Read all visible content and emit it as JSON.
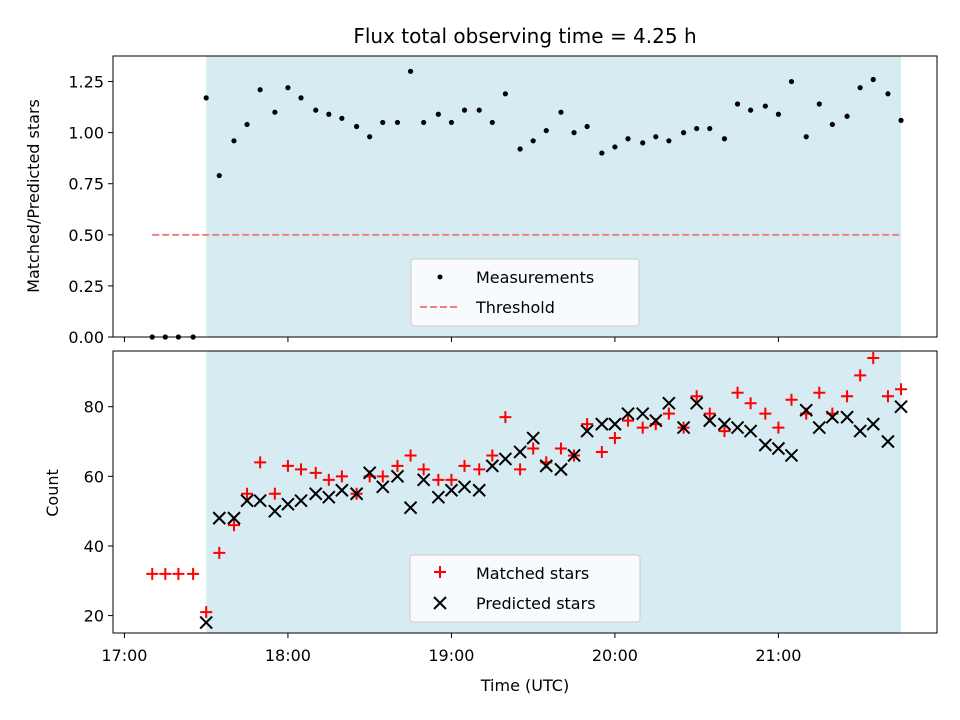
{
  "chart_data": [
    {
      "type": "scatter",
      "title": "Flux total observing time = 4.25 h",
      "xlabel": "",
      "ylabel": "Matched/Predicted stars",
      "xlim": [
        16.93,
        21.97
      ],
      "ylim": [
        0.0,
        1.375
      ],
      "yticks": [
        0.0,
        0.25,
        0.5,
        0.75,
        1.0,
        1.25
      ],
      "ytick_labels": [
        "0.00",
        "0.25",
        "0.50",
        "0.75",
        "1.00",
        "1.25"
      ],
      "xticks": [
        17,
        18,
        19,
        20,
        21
      ],
      "observing_span": [
        17.5,
        21.75
      ],
      "threshold": {
        "name": "Threshold",
        "y": 0.5,
        "x_start": 17.17,
        "x_end": 21.75,
        "color": "#f08080"
      },
      "legend": {
        "position": "lower center",
        "entries": [
          "Measurements",
          "Threshold"
        ]
      },
      "series": [
        {
          "name": "Measurements",
          "marker": "dot",
          "color": "#000000",
          "x": [
            17.17,
            17.25,
            17.33,
            17.42,
            17.5,
            17.58,
            17.67,
            17.75,
            17.83,
            17.92,
            18.0,
            18.08,
            18.17,
            18.25,
            18.33,
            18.42,
            18.5,
            18.58,
            18.67,
            18.75,
            18.83,
            18.92,
            19.0,
            19.08,
            19.17,
            19.25,
            19.33,
            19.42,
            19.5,
            19.58,
            19.67,
            19.75,
            19.83,
            19.92,
            20.0,
            20.08,
            20.17,
            20.25,
            20.33,
            20.42,
            20.5,
            20.58,
            20.67,
            20.75,
            20.83,
            20.92,
            21.0,
            21.08,
            21.17,
            21.25,
            21.33,
            21.42,
            21.5,
            21.58,
            21.67,
            21.75
          ],
          "y": [
            0.0,
            0.0,
            0.0,
            0.0,
            1.17,
            0.79,
            0.96,
            1.04,
            1.21,
            1.1,
            1.22,
            1.17,
            1.11,
            1.09,
            1.07,
            1.03,
            0.98,
            1.05,
            1.05,
            1.3,
            1.05,
            1.09,
            1.05,
            1.11,
            1.11,
            1.05,
            1.19,
            0.92,
            0.96,
            1.01,
            1.1,
            1.0,
            1.03,
            0.9,
            0.93,
            0.97,
            0.95,
            0.98,
            0.96,
            1.0,
            1.02,
            1.02,
            0.97,
            1.14,
            1.11,
            1.13,
            1.09,
            1.25,
            0.98,
            1.14,
            1.04,
            1.08,
            1.22,
            1.26,
            1.19,
            1.06
          ]
        }
      ]
    },
    {
      "type": "scatter",
      "title": "",
      "xlabel": "Time (UTC)",
      "ylabel": "Count",
      "xlim": [
        16.93,
        21.97
      ],
      "ylim": [
        15,
        96
      ],
      "yticks": [
        20,
        40,
        60,
        80
      ],
      "ytick_labels": [
        "20",
        "40",
        "60",
        "80"
      ],
      "xticks": [
        17,
        18,
        19,
        20,
        21
      ],
      "xtick_labels": [
        "17:00",
        "18:00",
        "19:00",
        "20:00",
        "21:00"
      ],
      "observing_span": [
        17.5,
        21.75
      ],
      "legend": {
        "position": "lower center",
        "entries": [
          "Matched stars",
          "Predicted stars"
        ]
      },
      "series": [
        {
          "name": "Matched stars",
          "marker": "plus",
          "color": "#ff0000",
          "x": [
            17.17,
            17.25,
            17.33,
            17.42,
            17.5,
            17.58,
            17.67,
            17.75,
            17.83,
            17.92,
            18.0,
            18.08,
            18.17,
            18.25,
            18.33,
            18.42,
            18.5,
            18.58,
            18.67,
            18.75,
            18.83,
            18.92,
            19.0,
            19.08,
            19.17,
            19.25,
            19.33,
            19.42,
            19.5,
            19.58,
            19.67,
            19.75,
            19.83,
            19.92,
            20.0,
            20.08,
            20.17,
            20.25,
            20.33,
            20.42,
            20.5,
            20.58,
            20.67,
            20.75,
            20.83,
            20.92,
            21.0,
            21.08,
            21.17,
            21.25,
            21.33,
            21.42,
            21.5,
            21.58,
            21.67,
            21.75
          ],
          "y": [
            32,
            32,
            32,
            32,
            21,
            38,
            46,
            55,
            64,
            55,
            63,
            62,
            61,
            59,
            60,
            55,
            60,
            60,
            63,
            66,
            62,
            59,
            59,
            63,
            62,
            66,
            77,
            62,
            68,
            64,
            68,
            66,
            75,
            67,
            71,
            76,
            74,
            75,
            78,
            74,
            83,
            78,
            73,
            84,
            81,
            78,
            74,
            82,
            78,
            84,
            78,
            83,
            89,
            94,
            83,
            85
          ]
        },
        {
          "name": "Predicted stars",
          "marker": "x",
          "color": "#000000",
          "x": [
            17.5,
            17.58,
            17.67,
            17.75,
            17.83,
            17.92,
            18.0,
            18.08,
            18.17,
            18.25,
            18.33,
            18.42,
            18.5,
            18.58,
            18.67,
            18.75,
            18.83,
            18.92,
            19.0,
            19.08,
            19.17,
            19.25,
            19.33,
            19.42,
            19.5,
            19.58,
            19.67,
            19.75,
            19.83,
            19.92,
            20.0,
            20.08,
            20.17,
            20.25,
            20.33,
            20.42,
            20.5,
            20.58,
            20.67,
            20.75,
            20.83,
            20.92,
            21.0,
            21.08,
            21.17,
            21.25,
            21.33,
            21.42,
            21.5,
            21.58,
            21.67,
            21.75
          ],
          "y": [
            18,
            48,
            48,
            53,
            53,
            50,
            52,
            53,
            55,
            54,
            56,
            55,
            61,
            57,
            60,
            51,
            59,
            54,
            56,
            57,
            56,
            63,
            65,
            67,
            71,
            63,
            62,
            66,
            73,
            75,
            75,
            78,
            78,
            76,
            81,
            74,
            81,
            76,
            75,
            74,
            73,
            69,
            68,
            66,
            79,
            74,
            77,
            77,
            73,
            75,
            70,
            80
          ]
        }
      ]
    }
  ]
}
